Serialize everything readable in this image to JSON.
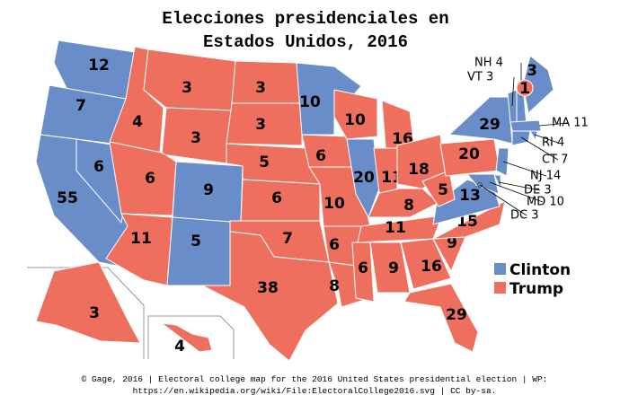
{
  "header": {
    "title_lines": [
      "Elecciones presidenciales en",
      "Estados Unidos, 2016"
    ]
  },
  "legend": [
    {
      "label": "Clinton",
      "color": "#698dc9"
    },
    {
      "label": "Trump",
      "color": "#ef6f5f"
    }
  ],
  "states": [
    {
      "label": 12,
      "color": "#698dc9"
    },
    {
      "label": 7,
      "color": "#698dc9"
    },
    {
      "label": 55,
      "color": "#698dc9"
    },
    {
      "label": 6,
      "color": "#698dc9"
    },
    {
      "label": 4,
      "color": "#ef6f5f"
    },
    {
      "label": 3,
      "color": "#ef6f5f"
    },
    {
      "label": 3,
      "color": "#ef6f5f"
    },
    {
      "label": 6,
      "color": "#ef6f5f"
    },
    {
      "label": 9,
      "color": "#698dc9"
    },
    {
      "label": 11,
      "color": "#ef6f5f"
    },
    {
      "label": 5,
      "color": "#698dc9"
    },
    {
      "label": 3,
      "color": "#ef6f5f"
    },
    {
      "label": 3,
      "color": "#ef6f5f"
    },
    {
      "label": 5,
      "color": "#ef6f5f"
    },
    {
      "label": 6,
      "color": "#ef6f5f"
    },
    {
      "label": 7,
      "color": "#ef6f5f"
    },
    {
      "label": 38,
      "color": "#ef6f5f"
    },
    {
      "label": 10,
      "color": "#698dc9"
    },
    {
      "label": 6,
      "color": "#ef6f5f"
    },
    {
      "label": 10,
      "color": "#ef6f5f"
    },
    {
      "label": 6,
      "color": "#ef6f5f"
    },
    {
      "label": 8,
      "color": "#ef6f5f"
    },
    {
      "label": 10,
      "color": "#ef6f5f"
    },
    {
      "label": 20,
      "color": "#698dc9"
    },
    {
      "label": 16,
      "color": "#ef6f5f"
    },
    {
      "label": 11,
      "color": "#ef6f5f"
    },
    {
      "label": 18,
      "color": "#ef6f5f"
    },
    {
      "label": 8,
      "color": "#ef6f5f"
    },
    {
      "label": 11,
      "color": "#ef6f5f"
    },
    {
      "label": 6,
      "color": "#ef6f5f"
    },
    {
      "label": 9,
      "color": "#ef6f5f"
    },
    {
      "label": 16,
      "color": "#ef6f5f"
    },
    {
      "label": 29,
      "color": "#ef6f5f"
    },
    {
      "label": 9,
      "color": "#ef6f5f"
    },
    {
      "label": 15,
      "color": "#ef6f5f"
    },
    {
      "label": 13,
      "color": "#698dc9"
    },
    {
      "label": 5,
      "color": "#ef6f5f"
    },
    {
      "label": 20,
      "color": "#ef6f5f"
    },
    {
      "label": 29,
      "color": "#698dc9"
    },
    {
      "label": "VT 3",
      "color": "#698dc9"
    },
    {
      "label": "NH 4",
      "color": "#698dc9"
    },
    {
      "label": 3,
      "color": "#698dc9"
    },
    {
      "label": 1,
      "color": "#ef6f5f"
    },
    {
      "label": "MA 11",
      "color": "#698dc9"
    },
    {
      "label": "RI 4",
      "color": "#698dc9"
    },
    {
      "label": "CT 7",
      "color": "#698dc9"
    },
    {
      "label": "NJ 14",
      "color": "#698dc9"
    },
    {
      "label": "DE 3",
      "color": "#698dc9"
    },
    {
      "label": "MD 10",
      "color": "#698dc9"
    },
    {
      "label": "DC 3",
      "color": "#698dc9"
    },
    {
      "label": 3,
      "color": "#ef6f5f"
    },
    {
      "label": 4,
      "color": "#ef6f5f"
    }
  ],
  "footer": {
    "lines": [
      "© Gage, 2016 |  Electoral college map for the 2016 United States presidential election | WP:",
      "https://en.wikipedia.org/wiki/File:ElectoralCollege2016.svg | CC by-sa."
    ]
  }
}
